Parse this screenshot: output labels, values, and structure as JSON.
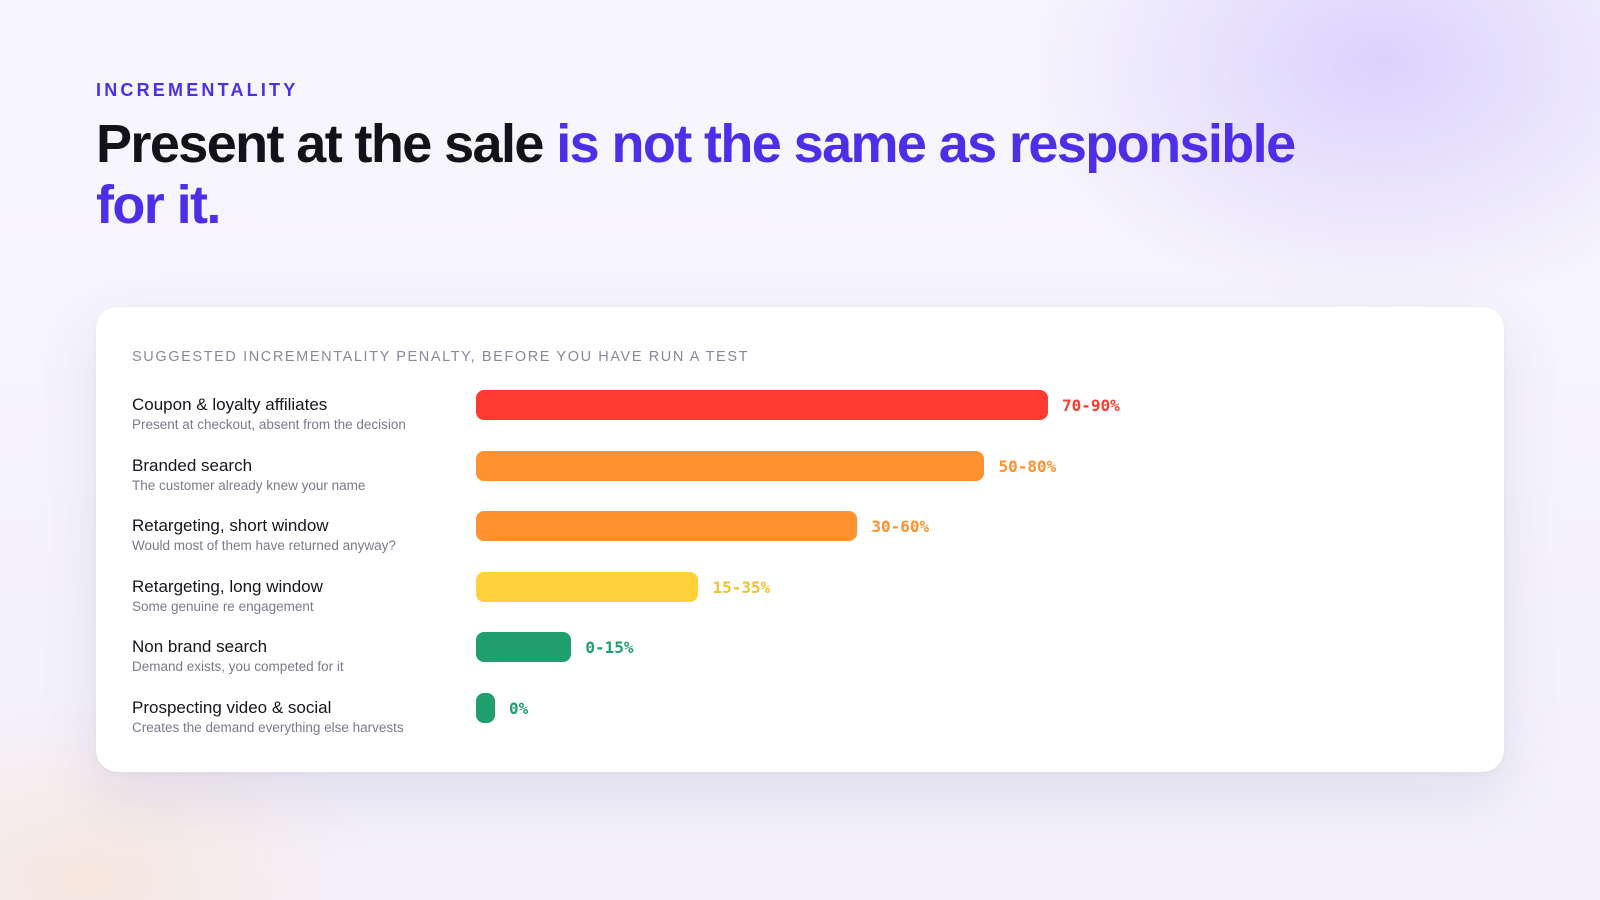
{
  "eyebrow": "INCREMENTALITY",
  "headline": {
    "dark": "Present at the sale ",
    "accent": "is not the same as responsible for it."
  },
  "colors": {
    "accent": "#4f2ee8",
    "red": "#ff3b2f",
    "orange": "#ff922e",
    "yellow": "#ffd23c",
    "green": "#1f9e6e"
  },
  "chart_data": {
    "type": "bar",
    "orientation": "horizontal",
    "title": "SUGGESTED INCREMENTALITY PENALTY, BEFORE YOU HAVE RUN A TEST",
    "unit": "%",
    "categories": [
      "Coupon & loyalty affiliates",
      "Branded search",
      "Retargeting, short window",
      "Retargeting, long window",
      "Non brand search",
      "Prospecting video & social"
    ],
    "bars": [
      {
        "label": "Coupon & loyalty affiliates",
        "sub": "Present at checkout, absent from the decision",
        "range": [
          70,
          90
        ],
        "value_label": "70-90%",
        "color": "#ff3b2f"
      },
      {
        "label": "Branded search",
        "sub": "The customer already knew your name",
        "range": [
          50,
          80
        ],
        "value_label": "50-80%",
        "color": "#ff922e"
      },
      {
        "label": "Retargeting, short window",
        "sub": "Would most of them have returned anyway?",
        "range": [
          30,
          60
        ],
        "value_label": "30-60%",
        "color": "#ff922e"
      },
      {
        "label": "Retargeting, long window",
        "sub": "Some genuine re engagement",
        "range": [
          15,
          35
        ],
        "value_label": "15-35%",
        "color": "#ffd23c"
      },
      {
        "label": "Non brand search",
        "sub": "Demand exists, you competed for it",
        "range": [
          0,
          15
        ],
        "value_label": "0-15%",
        "color": "#1f9e6e"
      },
      {
        "label": "Prospecting video & social",
        "sub": "Creates the demand everything else harvests",
        "range": [
          0,
          0
        ],
        "value_label": "0%",
        "color": "#1f9e6e"
      }
    ],
    "xlim": [
      0,
      90
    ],
    "grid": false,
    "legend": "none"
  }
}
